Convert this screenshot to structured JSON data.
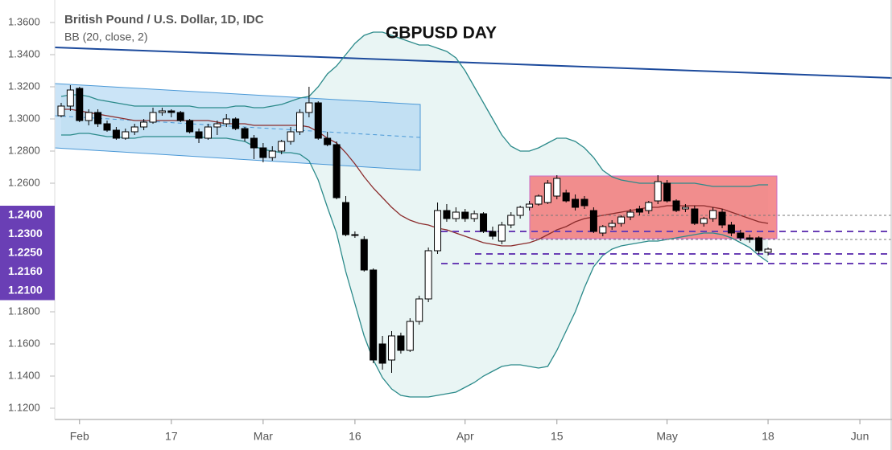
{
  "chart_data": {
    "type": "candlestick",
    "title": "GBPUSD DAY",
    "subtitle": "British Pound / U.S. Dollar, 1D, IDC",
    "annotation": "BB (20, close, 2)",
    "open": [
      1.302,
      1.308,
      1.319,
      1.299,
      1.304,
      1.297,
      1.293,
      1.288,
      1.292,
      1.295,
      1.298,
      1.304,
      1.305,
      1.304,
      1.299,
      1.292,
      1.288,
      1.295,
      1.297,
      1.3,
      1.294,
      1.288,
      1.282,
      1.276,
      1.28,
      1.286,
      1.292,
      1.304,
      1.31,
      1.288,
      1.284,
      1.248,
      1.228,
      1.225,
      1.206,
      1.16,
      1.15,
      1.165,
      1.156,
      1.174,
      1.188,
      1.218,
      1.243,
      1.238,
      1.242,
      1.238,
      1.241,
      1.23,
      1.224,
      1.234,
      1.24,
      1.245,
      1.247,
      1.248,
      1.252,
      1.254,
      1.25,
      1.25,
      1.243,
      1.229,
      1.233,
      1.235,
      1.239,
      1.244,
      1.243,
      1.249,
      1.26,
      1.249,
      1.244,
      1.244,
      1.235,
      1.238,
      1.242,
      1.234,
      1.229,
      1.226,
      1.226,
      1.217
    ],
    "high": [
      1.31,
      1.321,
      1.32,
      1.306,
      1.306,
      1.299,
      1.295,
      1.294,
      1.297,
      1.3,
      1.307,
      1.307,
      1.306,
      1.305,
      1.3,
      1.294,
      1.297,
      1.299,
      1.303,
      1.301,
      1.295,
      1.29,
      1.285,
      1.283,
      1.287,
      1.295,
      1.306,
      1.32,
      1.311,
      1.292,
      1.286,
      1.252,
      1.23,
      1.227,
      1.207,
      1.165,
      1.168,
      1.167,
      1.176,
      1.19,
      1.22,
      1.248,
      1.247,
      1.245,
      1.244,
      1.243,
      1.242,
      1.233,
      1.236,
      1.242,
      1.246,
      1.249,
      1.253,
      1.262,
      1.265,
      1.256,
      1.253,
      1.252,
      1.245,
      1.234,
      1.237,
      1.24,
      1.244,
      1.246,
      1.249,
      1.265,
      1.262,
      1.25,
      1.247,
      1.246,
      1.239,
      1.245,
      1.244,
      1.236,
      1.231,
      1.228,
      1.227,
      1.22
    ],
    "low": [
      1.301,
      1.305,
      1.298,
      1.296,
      1.295,
      1.292,
      1.287,
      1.287,
      1.29,
      1.293,
      1.297,
      1.302,
      1.301,
      1.298,
      1.291,
      1.285,
      1.287,
      1.29,
      1.295,
      1.293,
      1.286,
      1.275,
      1.273,
      1.274,
      1.278,
      1.284,
      1.29,
      1.301,
      1.287,
      1.283,
      1.25,
      1.227,
      1.226,
      1.205,
      1.148,
      1.144,
      1.142,
      1.154,
      1.155,
      1.172,
      1.186,
      1.216,
      1.236,
      1.236,
      1.236,
      1.236,
      1.229,
      1.225,
      1.222,
      1.232,
      1.238,
      1.243,
      1.246,
      1.247,
      1.25,
      1.248,
      1.243,
      1.244,
      1.229,
      1.227,
      1.231,
      1.233,
      1.237,
      1.24,
      1.241,
      1.247,
      1.248,
      1.242,
      1.242,
      1.234,
      1.233,
      1.236,
      1.232,
      1.227,
      1.224,
      1.223,
      1.216,
      1.215
    ],
    "close": [
      1.308,
      1.318,
      1.299,
      1.304,
      1.297,
      1.293,
      1.288,
      1.292,
      1.295,
      1.298,
      1.304,
      1.305,
      1.304,
      1.299,
      1.292,
      1.288,
      1.295,
      1.297,
      1.3,
      1.294,
      1.288,
      1.282,
      1.276,
      1.28,
      1.286,
      1.292,
      1.304,
      1.31,
      1.288,
      1.284,
      1.251,
      1.228,
      1.228,
      1.206,
      1.15,
      1.148,
      1.165,
      1.156,
      1.174,
      1.188,
      1.218,
      1.243,
      1.238,
      1.242,
      1.238,
      1.241,
      1.23,
      1.227,
      1.234,
      1.24,
      1.245,
      1.247,
      1.252,
      1.26,
      1.263,
      1.249,
      1.245,
      1.246,
      1.23,
      1.233,
      1.235,
      1.239,
      1.242,
      1.242,
      1.248,
      1.261,
      1.249,
      1.243,
      1.245,
      1.235,
      1.238,
      1.243,
      1.234,
      1.229,
      1.226,
      1.225,
      1.218,
      1.219
    ],
    "up_color": "#ffffff",
    "down_color": "#000000",
    "bollinger": {
      "upper": [
        1.314,
        1.315,
        1.315,
        1.314,
        1.312,
        1.311,
        1.31,
        1.309,
        1.308,
        1.308,
        1.308,
        1.308,
        1.308,
        1.308,
        1.308,
        1.307,
        1.307,
        1.307,
        1.307,
        1.308,
        1.308,
        1.307,
        1.307,
        1.308,
        1.309,
        1.311,
        1.313,
        1.314,
        1.32,
        1.328,
        1.333,
        1.34,
        1.347,
        1.352,
        1.354,
        1.354,
        1.352,
        1.35,
        1.348,
        1.346,
        1.346,
        1.344,
        1.342,
        1.338,
        1.33,
        1.32,
        1.31,
        1.3,
        1.29,
        1.283,
        1.28,
        1.28,
        1.282,
        1.285,
        1.288,
        1.288,
        1.286,
        1.282,
        1.276,
        1.268,
        1.264,
        1.262,
        1.261,
        1.26,
        1.26,
        1.26,
        1.26,
        1.26,
        1.26,
        1.26,
        1.259,
        1.258,
        1.258,
        1.258,
        1.258,
        1.258,
        1.259,
        1.259
      ],
      "basis": [
        1.306,
        1.306,
        1.305,
        1.304,
        1.303,
        1.302,
        1.301,
        1.3,
        1.299,
        1.299,
        1.299,
        1.299,
        1.299,
        1.299,
        1.299,
        1.299,
        1.299,
        1.298,
        1.297,
        1.297,
        1.297,
        1.296,
        1.296,
        1.296,
        1.296,
        1.296,
        1.296,
        1.295,
        1.292,
        1.288,
        1.285,
        1.279,
        1.272,
        1.264,
        1.257,
        1.251,
        1.245,
        1.24,
        1.237,
        1.235,
        1.234,
        1.232,
        1.231,
        1.229,
        1.227,
        1.225,
        1.223,
        1.222,
        1.221,
        1.221,
        1.222,
        1.223,
        1.225,
        1.228,
        1.231,
        1.233,
        1.236,
        1.238,
        1.239,
        1.24,
        1.241,
        1.242,
        1.243,
        1.244,
        1.245,
        1.245,
        1.246,
        1.246,
        1.246,
        1.246,
        1.246,
        1.245,
        1.244,
        1.242,
        1.24,
        1.238,
        1.236,
        1.235
      ],
      "lower": [
        1.29,
        1.29,
        1.291,
        1.291,
        1.29,
        1.289,
        1.289,
        1.288,
        1.288,
        1.289,
        1.289,
        1.289,
        1.289,
        1.289,
        1.289,
        1.289,
        1.288,
        1.288,
        1.288,
        1.287,
        1.286,
        1.283,
        1.281,
        1.28,
        1.279,
        1.279,
        1.278,
        1.274,
        1.262,
        1.245,
        1.229,
        1.205,
        1.185,
        1.165,
        1.15,
        1.139,
        1.132,
        1.128,
        1.127,
        1.127,
        1.127,
        1.128,
        1.129,
        1.13,
        1.133,
        1.136,
        1.14,
        1.143,
        1.146,
        1.147,
        1.147,
        1.146,
        1.145,
        1.146,
        1.156,
        1.168,
        1.18,
        1.195,
        1.208,
        1.215,
        1.219,
        1.221,
        1.222,
        1.223,
        1.224,
        1.224,
        1.225,
        1.226,
        1.227,
        1.228,
        1.229,
        1.229,
        1.228,
        1.226,
        1.223,
        1.22,
        1.215,
        1.211
      ],
      "band_color": "#2b8a8a",
      "basis_color": "#8b2c2c",
      "fill": "#e9f5f4"
    },
    "price_levels": [
      {
        "value": 1.24,
        "label": "1.2400"
      },
      {
        "value": 1.23,
        "label": "1.2300"
      },
      {
        "value": 1.225,
        "label": "1.2250"
      },
      {
        "value": 1.216,
        "label": "1.2160"
      },
      {
        "value": 1.21,
        "label": "1.2100"
      }
    ],
    "level_color": "#6a3fb5",
    "ylim": [
      1.113,
      1.374
    ],
    "yticks": [
      {
        "value": 1.36,
        "label": "1.3600"
      },
      {
        "value": 1.34,
        "label": "1.3400"
      },
      {
        "value": 1.32,
        "label": "1.3200"
      },
      {
        "value": 1.3,
        "label": "1.3000"
      },
      {
        "value": 1.28,
        "label": "1.2800"
      },
      {
        "value": 1.26,
        "label": "1.2600"
      },
      {
        "value": 1.18,
        "label": "1.1800"
      },
      {
        "value": 1.16,
        "label": "1.1600"
      },
      {
        "value": 1.14,
        "label": "1.1400"
      },
      {
        "value": 1.12,
        "label": "1.1200"
      }
    ],
    "xlim": [
      -0.7,
      90.5
    ],
    "xticks": [
      {
        "value": 2,
        "label": "Feb"
      },
      {
        "value": 12,
        "label": "17"
      },
      {
        "value": 22,
        "label": "Mar"
      },
      {
        "value": 32,
        "label": "16"
      },
      {
        "value": 44,
        "label": "Apr"
      },
      {
        "value": 54,
        "label": "15"
      },
      {
        "value": 66,
        "label": "May"
      },
      {
        "value": 77,
        "label": "18"
      },
      {
        "value": 87,
        "label": "Jun"
      }
    ]
  }
}
